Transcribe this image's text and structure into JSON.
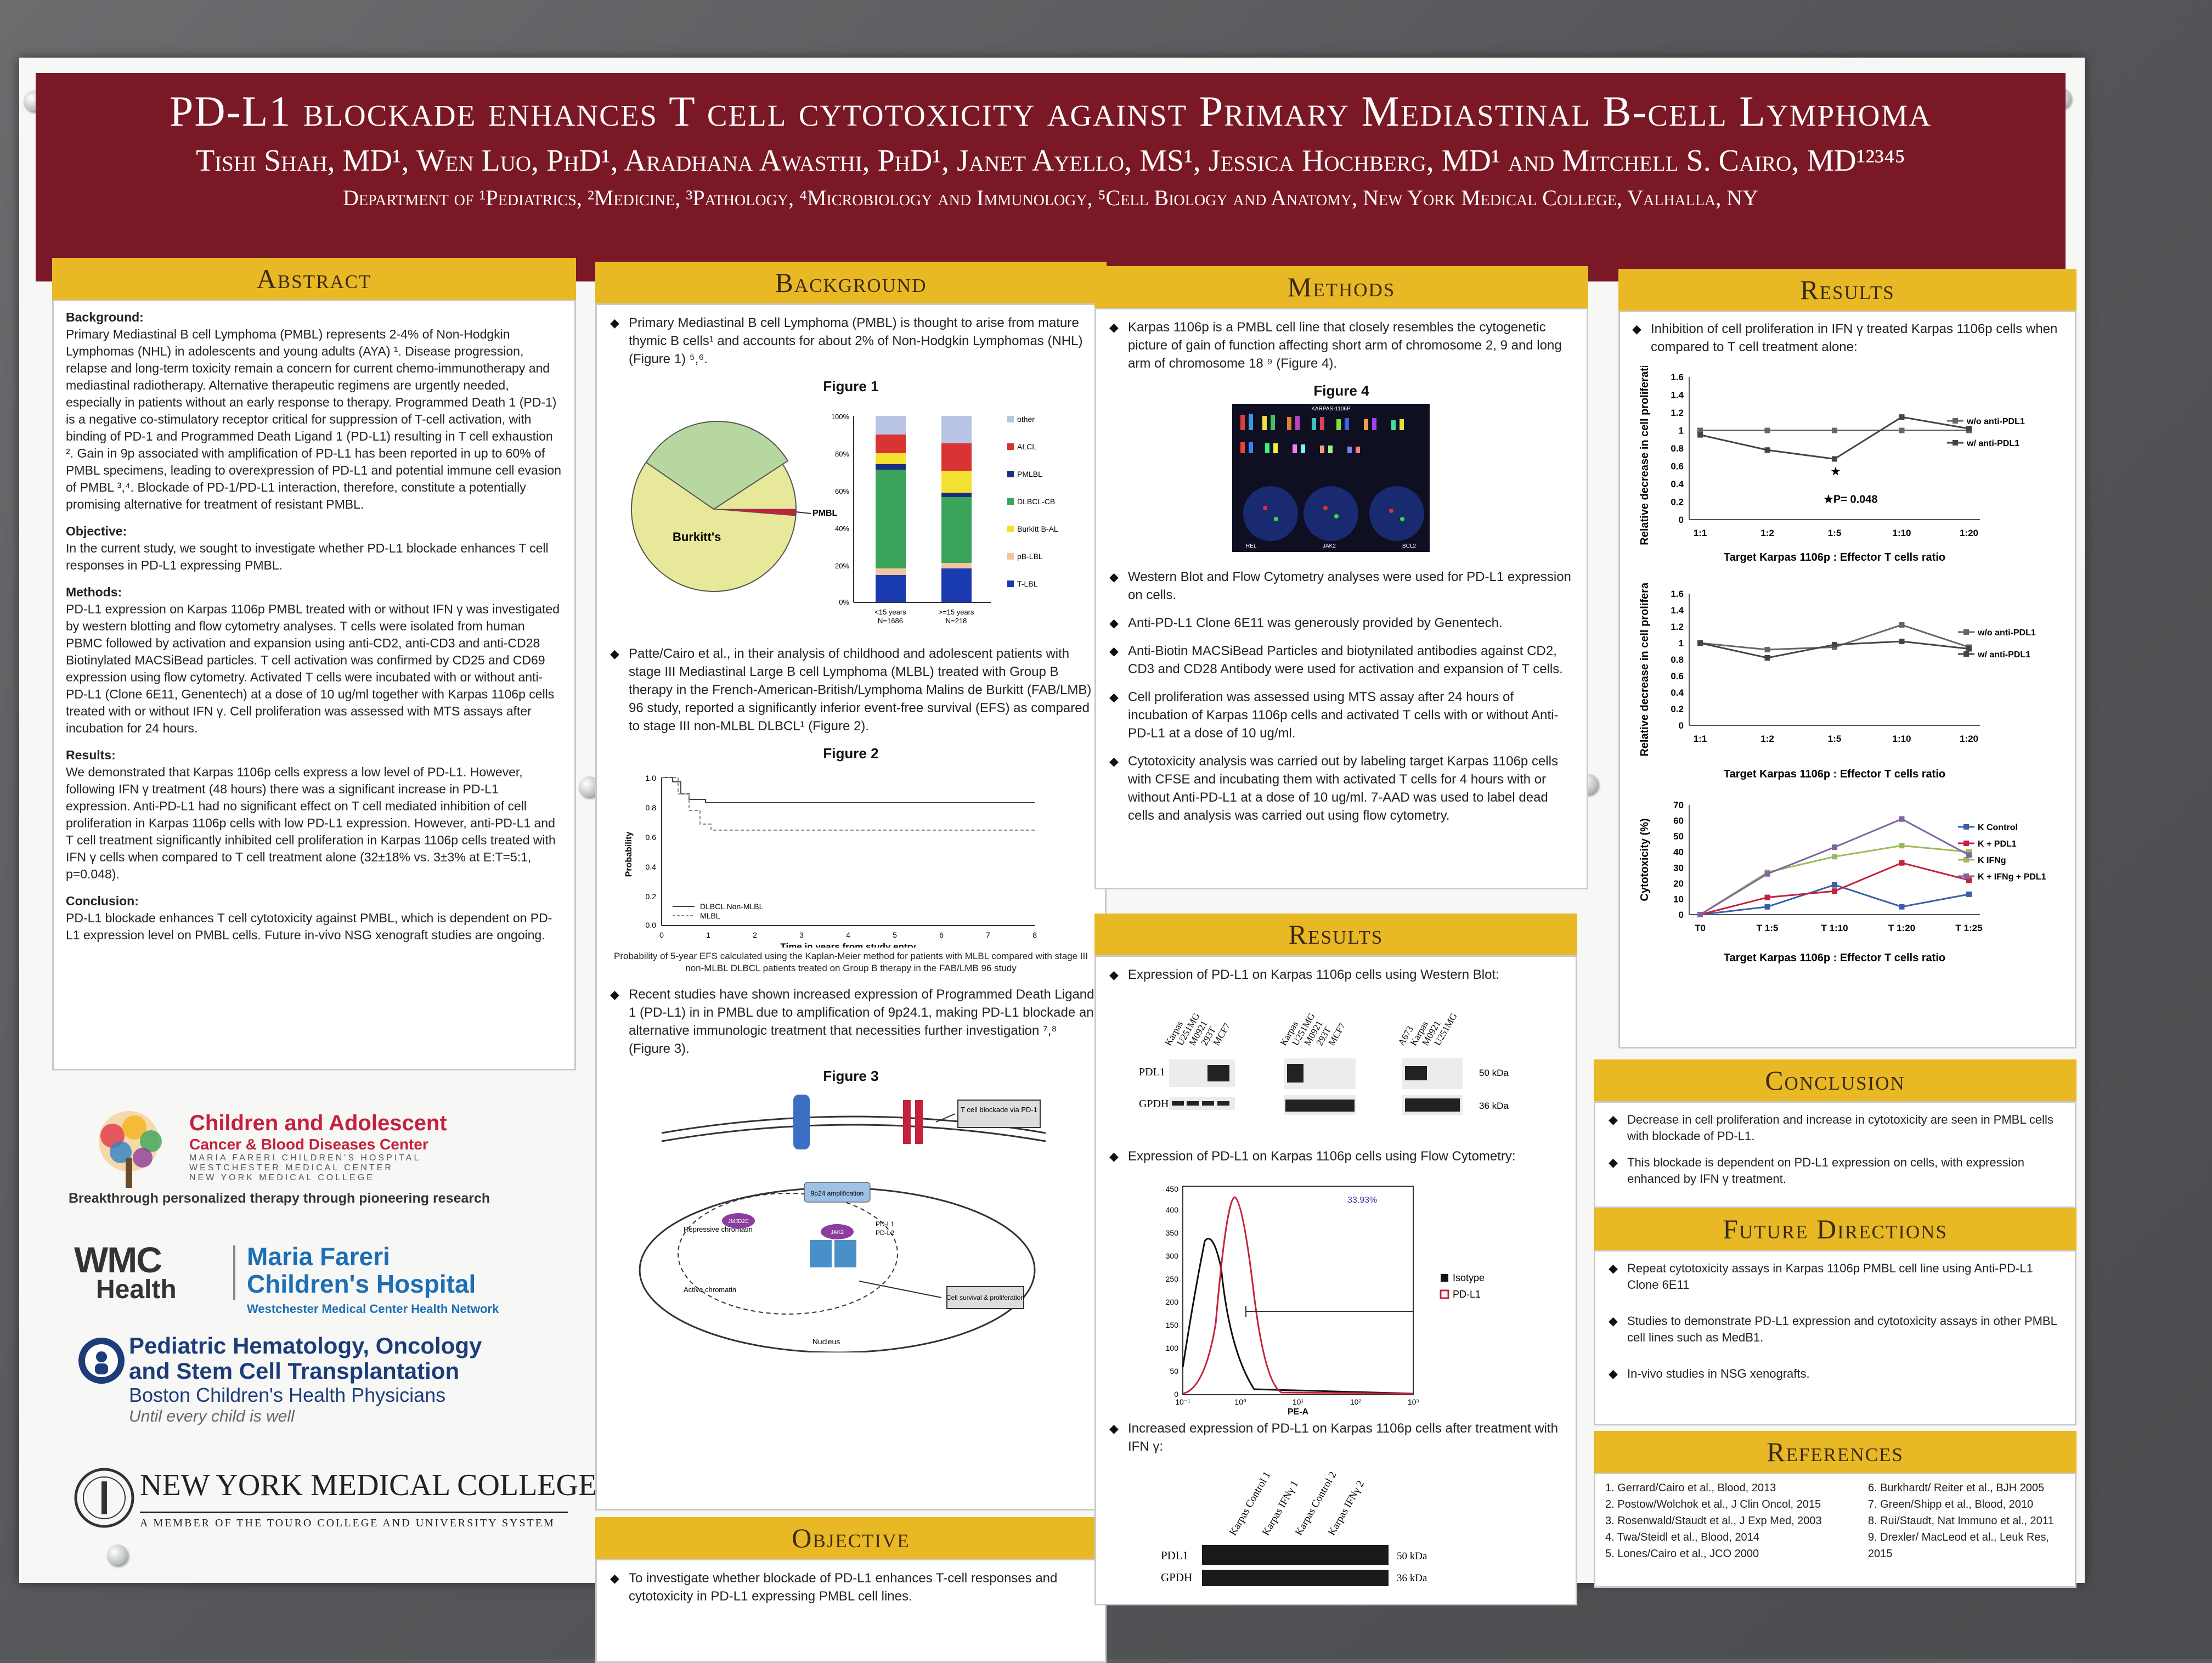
{
  "banner": {
    "title": "PD-L1 blockade enhances T cell cytotoxicity against Primary Mediastinal B-cell Lymphoma",
    "authors": "Tishi Shah, MD¹, Wen Luo, PhD¹, Aradhana Awasthi, PhD¹, Janet Ayello, MS¹, Jessica Hochberg, MD¹ and Mitchell S. Cairo, MD¹²³⁴⁵",
    "departments": "Department of ¹Pediatrics, ²Medicine, ³Pathology, ⁴Microbiology and Immunology, ⁵Cell Biology and Anatomy, New York Medical College, Valhalla, NY"
  },
  "abstract": {
    "heading": "Abstract",
    "background_label": "Background:",
    "background": "Primary Mediastinal B cell Lymphoma (PMBL) represents 2-4% of Non-Hodgkin Lymphomas (NHL) in adolescents and young adults (AYA) ¹. Disease progression, relapse and long-term toxicity remain a concern for current chemo-immunotherapy and mediastinal radiotherapy. Alternative therapeutic regimens are urgently needed, especially in patients without an early response to therapy. Programmed Death 1 (PD-1) is a negative co-stimulatory receptor critical for suppression of T-cell activation, with binding of PD-1 and Programmed Death Ligand 1 (PD-L1) resulting in T cell exhaustion ². Gain in 9p associated with amplification of PD-L1 has been reported in up to 60% of PMBL specimens, leading to overexpression of PD-L1 and potential immune cell evasion of PMBL ³,⁴. Blockade of PD-1/PD-L1 interaction, therefore, constitute a potentially promising alternative for treatment of resistant PMBL.",
    "objective_label": "Objective:",
    "objective": "In the current study, we sought to investigate whether PD-L1 blockade enhances T cell responses in PD-L1 expressing PMBL.",
    "methods_label": "Methods:",
    "methods": "PD-L1 expression on Karpas 1106p PMBL treated with or without IFN γ was investigated by western blotting and flow cytometry analyses. T cells were isolated from human PBMC followed by activation and expansion using anti-CD2, anti-CD3 and anti-CD28 Biotinylated MACSiBead particles. T cell activation was confirmed by CD25 and CD69 expression using flow cytometry. Activated T cells were incubated with or without anti-PD-L1 (Clone 6E11, Genentech) at a dose of 10 ug/ml together with Karpas 1106p cells treated with or without IFN γ. Cell proliferation was assessed with MTS assays after incubation for 24 hours.",
    "results_label": "Results:",
    "results": "We demonstrated that Karpas 1106p cells express a low level of PD-L1. However, following IFN γ treatment (48 hours) there was a significant increase in PD-L1 expression. Anti-PD-L1 had no significant effect on T cell mediated inhibition of cell proliferation in Karpas 1106p cells with low PD-L1 expression. However, anti-PD-L1 and T cell treatment significantly inhibited cell proliferation in Karpas 1106p cells treated with IFN γ cells when compared to T cell treatment alone (32±18% vs. 3±3% at E:T=5:1, p=0.048).",
    "conclusion_label": "Conclusion:",
    "conclusion": "PD-L1 blockade enhances T cell cytotoxicity against PMBL, which is dependent on PD-L1 expression level on PMBL cells. Future in-vivo NSG xenograft studies are ongoing."
  },
  "logos": {
    "cacbd_line1": "Children and Adolescent",
    "cacbd_line2": "Cancer & Blood Diseases Center",
    "cacbd_line3": "MARIA FARERI CHILDREN'S HOSPITAL",
    "cacbd_line4": "WESTCHESTER MEDICAL CENTER",
    "cacbd_line5": "NEW YORK MEDICAL COLLEGE",
    "cacbd_tagline": "Breakthrough personalized therapy through pioneering research",
    "wmc": "WMC",
    "wmc_health": "Health",
    "mfch_line1": "Maria Fareri",
    "mfch_line2": "Children's Hospital",
    "mfch_line3": "Westchester Medical Center Health Network",
    "phos_line1": "Pediatric Hematology, Oncology",
    "phos_line2": "and Stem Cell Transplantation",
    "phos_line3": "Boston Children's Health Physicians",
    "phos_line4": "Until every child is well",
    "nymc": "NEW YORK MEDICAL COLLEGE",
    "nymc_sub": "A MEMBER OF THE TOURO COLLEGE AND UNIVERSITY SYSTEM"
  },
  "background": {
    "heading": "Background",
    "bullet1": "Primary Mediastinal B cell Lymphoma (PMBL) is thought to arise from mature thymic B cells¹ and accounts for about 2% of Non-Hodgkin Lymphomas (NHL) (Figure 1) ⁵,⁶.",
    "fig1_title": "Figure 1",
    "fig1_pie_label_burkitt": "Burkitt's",
    "fig1_pie_label_pmbl": "PMBL",
    "fig1_bar_labels": [
      "<15 years",
      ">=15 years"
    ],
    "fig1_bar_n": [
      "N=1686",
      "N=218"
    ],
    "fig1_legend": [
      "other",
      "ALCL",
      "PMLBL",
      "DLBCL-CB",
      "Burkitt B-AL",
      "pB-LBL",
      "T-LBL"
    ],
    "bullet2": "Patte/Cairo et al., in their analysis of childhood and adolescent patients with stage III Mediastinal Large B cell Lymphoma (MLBL) treated with Group B therapy in the French-American-British/Lymphoma Malins de Burkitt (FAB/LMB) 96 study, reported a significantly inferior event-free survival (EFS) as compared to stage III non-MLBL DLBCL¹ (Figure 2).",
    "fig2_title": "Figure 2",
    "fig2_ylabel": "Probability",
    "fig2_xlabel": "Time in years from study entry",
    "fig2_legend": [
      "DLBCL Non-MLBL",
      "MLBL"
    ],
    "fig2_caption": "Probability of 5-year EFS calculated using the Kaplan-Meier method for patients with MLBL compared with stage III non-MLBL DLBCL patients treated on Group B therapy in the FAB/LMB 96 study",
    "bullet3": "Recent studies have shown increased expression of Programmed Death Ligand 1 (PD-L1) in in PMBL due to amplification of 9p24.1, making PD-L1 blockade an alternative immunologic treatment that necessities further investigation ⁷,⁸ (Figure 3).",
    "fig3_title": "Figure 3",
    "fig3_labels": [
      "T cell blockade via PD-1",
      "9p24 amplification",
      "Repressive chromatin",
      "Active chromatin",
      "Cell survival & proliferation",
      "Nucleus",
      "PD-L1",
      "PD-L2",
      "JAK2",
      "JMJD2C"
    ]
  },
  "objective": {
    "heading": "Objective",
    "bullet": "To investigate whether blockade of PD-L1 enhances T-cell responses and cytotoxicity in PD-L1 expressing PMBL cell lines."
  },
  "methods": {
    "heading": "Methods",
    "bullet1": "Karpas 1106p is a PMBL cell line that closely resembles the cytogenetic picture of gain of function affecting short arm of chromosome 2, 9 and long arm of chromosome 18 ⁹ (Figure 4).",
    "fig4_title": "Figure 4",
    "fig4_labels": [
      "KARPAS-1106P",
      "REL",
      "JAK2",
      "BCL2"
    ],
    "bullet2": "Western Blot and Flow Cytometry analyses were used for PD-L1 expression on cells.",
    "bullet3": "Anti-PD-L1 Clone 6E11 was generously provided by Genentech.",
    "bullet4": "Anti-Biotin MACSiBead Particles and biotynilated antibodies against CD2, CD3 and CD28 Antibody were used for activation and expansion of T cells.",
    "bullet5": "Cell proliferation was assessed using MTS assay after 24 hours of incubation of Karpas 1106p cells and activated T cells with or without Anti-PD-L1 at a dose of 10 ug/ml.",
    "bullet6": "Cytotoxicity analysis was carried out by labeling target Karpas 1106p cells with CFSE and incubating them with activated T cells for 4 hours with or without Anti-PD-L1 at a dose of 10 ug/ml. 7-AAD was used to label dead cells and analysis was carried out using flow cytometry."
  },
  "results_mid": {
    "heading": "Results",
    "bullet1": "Expression of PD-L1 on Karpas 1106p cells using Western Blot:",
    "wb_lanes_a": [
      "Karpas",
      "U251MG",
      "M0921",
      "293T",
      "MCF7"
    ],
    "wb_lanes_b": [
      "Karpas",
      "U251MG",
      "M0921",
      "293T",
      "MCF7"
    ],
    "wb_lanes_c": [
      "A673",
      "Karpas",
      "M0921",
      "U251MG"
    ],
    "wb_row_pdl1": "PDL1",
    "wb_row_gpdh": "GPDH",
    "wb_kda_50": "50 kDa",
    "wb_kda_36": "36 kDa",
    "bullet2": "Expression of PD-L1 on Karpas 1106p cells using Flow Cytometry:",
    "flow_percent": "33.93%",
    "flow_xlabel": "PE-A",
    "flow_legend": [
      "Isotype",
      "PD-L1"
    ],
    "flow_xticks": [
      "10⁻¹",
      "10⁰",
      "10¹",
      "10²",
      "10³"
    ],
    "flow_yticks": [
      "0",
      "50",
      "100",
      "150",
      "200",
      "250",
      "300",
      "350",
      "400",
      "450"
    ],
    "bullet3": "Increased expression of PD-L1 on Karpas 1106p cells after treatment with IFN γ:",
    "ifn_lanes": [
      "Karpas Control 1",
      "Karpas IFNγ 1",
      "Karpas Control 2",
      "Karpas IFNγ 2"
    ],
    "ifn_row_pdl1": "PDL1",
    "ifn_row_gpdh": "GPDH",
    "ifn_kda_50": "50 kDa",
    "ifn_kda_36": "36 kDa"
  },
  "results_right": {
    "heading": "Results",
    "bullet1": "Inhibition of cell proliferation in IFN γ treated Karpas 1106p cells when compared to T cell treatment alone:",
    "sig_note": "★P= 0.048"
  },
  "chart_data": [
    {
      "type": "line",
      "title": "",
      "xlabel": "Target Karpas 1106p : Effector T cells ratio",
      "ylabel": "Relative decrease in cell proliferation",
      "categories": [
        "1:1",
        "1:2",
        "1:5",
        "1:10",
        "1:20"
      ],
      "ylim": [
        0,
        1.6
      ],
      "series": [
        {
          "name": "w/o anti-PDL1",
          "values": [
            1.0,
            1.0,
            1.0,
            1.0,
            1.0
          ]
        },
        {
          "name": "w/ anti-PDL1",
          "values": [
            0.95,
            0.78,
            0.68,
            1.15,
            1.02
          ]
        }
      ]
    },
    {
      "type": "line",
      "title": "",
      "xlabel": "Target Karpas 1106p : Effector T cells ratio",
      "ylabel": "Relative decrease in cell proliferation",
      "categories": [
        "1:1",
        "1:2",
        "1:5",
        "1:10",
        "1:20"
      ],
      "ylim": [
        0,
        1.6
      ],
      "series": [
        {
          "name": "w/o anti-PDL1",
          "values": [
            1.0,
            0.92,
            0.95,
            1.22,
            0.95
          ]
        },
        {
          "name": "w/ anti-PDL1",
          "values": [
            1.0,
            0.82,
            0.98,
            1.02,
            0.93
          ]
        }
      ]
    },
    {
      "type": "line",
      "title": "",
      "xlabel": "Target Karpas 1106p : Effector T cells ratio",
      "ylabel": "Cytotoxicity (%)",
      "categories": [
        "T0",
        "T 1:5",
        "T 1:10",
        "T 1:20",
        "T 1:25"
      ],
      "ylim": [
        0,
        70
      ],
      "series": [
        {
          "name": "K Control",
          "values": [
            0,
            5,
            19,
            5,
            13
          ]
        },
        {
          "name": "K + PDL1",
          "values": [
            0,
            11,
            15,
            33,
            22
          ]
        },
        {
          "name": "K IFNg",
          "values": [
            0,
            27,
            37,
            44,
            40
          ]
        },
        {
          "name": "K + IFNg + PDL1",
          "values": [
            0,
            26,
            43,
            61,
            38
          ]
        }
      ]
    }
  ],
  "conclusion": {
    "heading": "Conclusion",
    "bullet1": "Decrease in cell proliferation and increase in cytotoxicity are seen in PMBL cells with blockade of PD-L1.",
    "bullet2": "This blockade is dependent on PD-L1 expression on cells, with expression enhanced by IFN γ treatment."
  },
  "future": {
    "heading": "Future Directions",
    "bullet1": "Repeat cytotoxicity assays in Karpas 1106p PMBL cell line using Anti-PD-L1 Clone 6E11",
    "bullet2": "Studies to demonstrate PD-L1 expression and cytotoxicity assays in other PMBL cell lines such as MedB1.",
    "bullet3": "In-vivo studies in NSG xenografts."
  },
  "references": {
    "heading": "References",
    "left": [
      "1.    Gerrard/Cairo et al., Blood, 2013",
      "2.    Postow/Wolchok et al., J Clin Oncol, 2015",
      "3.    Rosenwald/Staudt et al., J Exp Med, 2003",
      "4.    Twa/Steidl et al., Blood, 2014",
      "5.    Lones/Cairo et al., JCO 2000"
    ],
    "right": [
      "6. Burkhardt/ Reiter et al., BJH 2005",
      "7. Green/Shipp et al., Blood, 2010",
      "8. Rui/Staudt, Nat Immuno et al., 2011",
      "9. Drexler/ MacLeod et al., Leuk Res, 2015"
    ]
  },
  "colors": {
    "banner": "#7a1825",
    "header": "#e8b825"
  }
}
